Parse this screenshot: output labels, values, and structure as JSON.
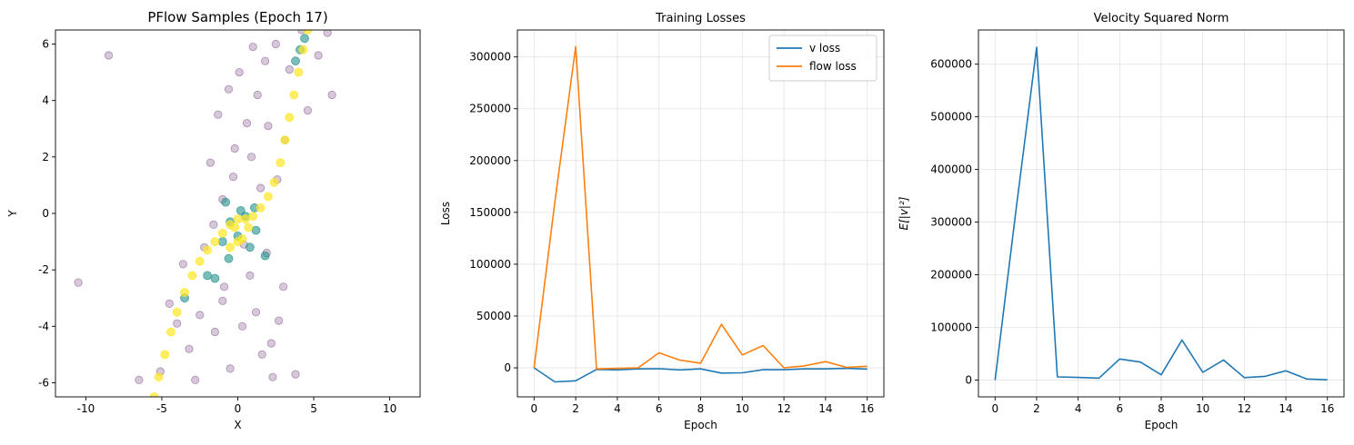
{
  "chart_data": [
    {
      "type": "scatter",
      "title": "PFlow Samples (Epoch 17)",
      "xlabel": "X",
      "ylabel": "Y",
      "xlim": [
        -12,
        12
      ],
      "ylim": [
        -6.5,
        6.5
      ],
      "xticks": [
        -10,
        -5,
        0,
        5,
        10
      ],
      "yticks": [
        -6,
        -4,
        -2,
        0,
        2,
        4,
        6
      ],
      "grid": false,
      "colormap": "viridis",
      "series": [
        {
          "color": "#440154",
          "alpha": 0.22,
          "description": "dispersed samples along two curved branches",
          "points": [
            [
              -10.5,
              -2.45
            ],
            [
              -8.5,
              5.6
            ],
            [
              4.6,
              3.65
            ],
            [
              5.9,
              6.4
            ],
            [
              6.2,
              4.2
            ],
            [
              5.3,
              5.6
            ],
            [
              -4.5,
              -3.2
            ],
            [
              -3.2,
              -4.8
            ],
            [
              -2.8,
              -5.9
            ],
            [
              -1.5,
              -4.2
            ],
            [
              -1.0,
              -3.1
            ],
            [
              -0.5,
              -5.5
            ],
            [
              0.3,
              -4.0
            ],
            [
              1.2,
              -3.5
            ],
            [
              1.6,
              -5.0
            ],
            [
              2.2,
              -4.6
            ],
            [
              2.7,
              -3.8
            ],
            [
              3.0,
              -2.6
            ],
            [
              2.3,
              -5.8
            ],
            [
              3.8,
              -5.7
            ],
            [
              -3.6,
              -1.8
            ],
            [
              -2.2,
              -1.2
            ],
            [
              -1.0,
              0.5
            ],
            [
              -0.2,
              2.3
            ],
            [
              0.6,
              3.2
            ],
            [
              1.3,
              4.2
            ],
            [
              1.8,
              5.4
            ],
            [
              2.5,
              6.0
            ],
            [
              -0.6,
              4.4
            ],
            [
              0.1,
              5.0
            ],
            [
              1.0,
              5.9
            ],
            [
              -1.3,
              3.5
            ],
            [
              -1.8,
              1.8
            ],
            [
              3.4,
              5.1
            ],
            [
              3.1,
              2.6
            ],
            [
              2.6,
              1.2
            ],
            [
              -2.5,
              -3.6
            ],
            [
              -0.9,
              -2.6
            ],
            [
              0.8,
              -2.2
            ],
            [
              1.9,
              -1.4
            ],
            [
              -6.5,
              -5.9
            ],
            [
              -5.1,
              -5.6
            ],
            [
              -4.0,
              -3.9
            ],
            [
              4.2,
              6.5
            ],
            [
              0.4,
              -1.1
            ],
            [
              -0.3,
              1.3
            ],
            [
              1.5,
              0.9
            ],
            [
              2.0,
              3.1
            ],
            [
              0.9,
              2.0
            ],
            [
              -1.6,
              -0.4
            ]
          ]
        },
        {
          "color": "#21918c",
          "alpha": 0.6,
          "description": "intermediate density samples",
          "points": [
            [
              -1.5,
              -2.3
            ],
            [
              -2.0,
              -2.2
            ],
            [
              -1.0,
              -1.0
            ],
            [
              0.0,
              -0.8
            ],
            [
              0.8,
              -1.2
            ],
            [
              1.2,
              -0.6
            ],
            [
              1.8,
              -1.5
            ],
            [
              -0.5,
              -0.3
            ],
            [
              0.5,
              -0.1
            ],
            [
              3.8,
              5.4
            ],
            [
              4.1,
              5.8
            ],
            [
              4.4,
              6.2
            ],
            [
              -0.8,
              0.4
            ],
            [
              0.2,
              0.1
            ],
            [
              1.1,
              0.2
            ],
            [
              -3.5,
              -3.0
            ],
            [
              -0.6,
              -1.6
            ]
          ]
        },
        {
          "color": "#fde725",
          "alpha": 0.7,
          "description": "dense core samples along two curved branches",
          "points": [
            [
              -5.5,
              -6.5
            ],
            [
              -5.2,
              -5.8
            ],
            [
              -4.8,
              -5.0
            ],
            [
              -4.4,
              -4.2
            ],
            [
              -4.0,
              -3.5
            ],
            [
              -3.5,
              -2.8
            ],
            [
              -3.0,
              -2.2
            ],
            [
              -2.5,
              -1.7
            ],
            [
              -2.0,
              -1.3
            ],
            [
              -1.5,
              -1.0
            ],
            [
              -1.0,
              -0.7
            ],
            [
              -0.5,
              -0.4
            ],
            [
              0.0,
              -0.2
            ],
            [
              0.5,
              -0.2
            ],
            [
              1.0,
              -0.1
            ],
            [
              1.5,
              0.2
            ],
            [
              2.0,
              0.6
            ],
            [
              2.4,
              1.1
            ],
            [
              2.8,
              1.8
            ],
            [
              3.1,
              2.6
            ],
            [
              3.4,
              3.4
            ],
            [
              3.7,
              4.2
            ],
            [
              4.0,
              5.0
            ],
            [
              4.3,
              5.8
            ],
            [
              4.6,
              6.5
            ],
            [
              -0.5,
              -1.2
            ],
            [
              0.0,
              -1.0
            ],
            [
              0.3,
              -0.9
            ],
            [
              -0.2,
              -0.5
            ],
            [
              0.7,
              -0.5
            ]
          ]
        }
      ]
    },
    {
      "type": "line",
      "title": "Training Losses",
      "xlabel": "Epoch",
      "ylabel": "Loss",
      "xlim": [
        -0.8,
        16.8
      ],
      "ylim": [
        -28000,
        326000
      ],
      "xticks": [
        0,
        2,
        4,
        6,
        8,
        10,
        12,
        14,
        16
      ],
      "yticks": [
        0,
        50000,
        100000,
        150000,
        200000,
        250000,
        300000
      ],
      "grid": true,
      "legend": "top-right",
      "x": [
        0,
        1,
        2,
        3,
        4,
        5,
        6,
        7,
        8,
        9,
        10,
        11,
        12,
        13,
        14,
        15,
        16
      ],
      "series": [
        {
          "name": "v loss",
          "color": "#1f77b4",
          "values": [
            0,
            -13500,
            -12500,
            -1500,
            -2000,
            -1000,
            -800,
            -2000,
            -1000,
            -5000,
            -4800,
            -1800,
            -1800,
            -1000,
            -1000,
            -500,
            -1200
          ]
        },
        {
          "name": "flow loss",
          "color": "#ff7f0e",
          "values": [
            0,
            160000,
            310000,
            -1000,
            -500,
            0,
            14500,
            7500,
            4500,
            42000,
            12500,
            21500,
            0,
            2000,
            6000,
            500,
            1500
          ]
        }
      ]
    },
    {
      "type": "line",
      "title": "Velocity Squared Norm",
      "xlabel": "Epoch",
      "ylabel": "E[|v|²]",
      "xlim": [
        -0.8,
        16.8
      ],
      "ylim": [
        -32000,
        665000
      ],
      "xticks": [
        0,
        2,
        4,
        6,
        8,
        10,
        12,
        14,
        16
      ],
      "yticks": [
        0,
        100000,
        200000,
        300000,
        400000,
        500000,
        600000
      ],
      "grid": true,
      "x": [
        0,
        1,
        2,
        3,
        4,
        5,
        6,
        7,
        8,
        9,
        10,
        11,
        12,
        13,
        14,
        15,
        16
      ],
      "series": [
        {
          "color": "#1f77b4",
          "values": [
            0,
            320000,
            632000,
            6000,
            5000,
            3500,
            40000,
            34000,
            10000,
            76000,
            14500,
            38000,
            4500,
            7000,
            17500,
            2000,
            500
          ]
        }
      ]
    }
  ]
}
